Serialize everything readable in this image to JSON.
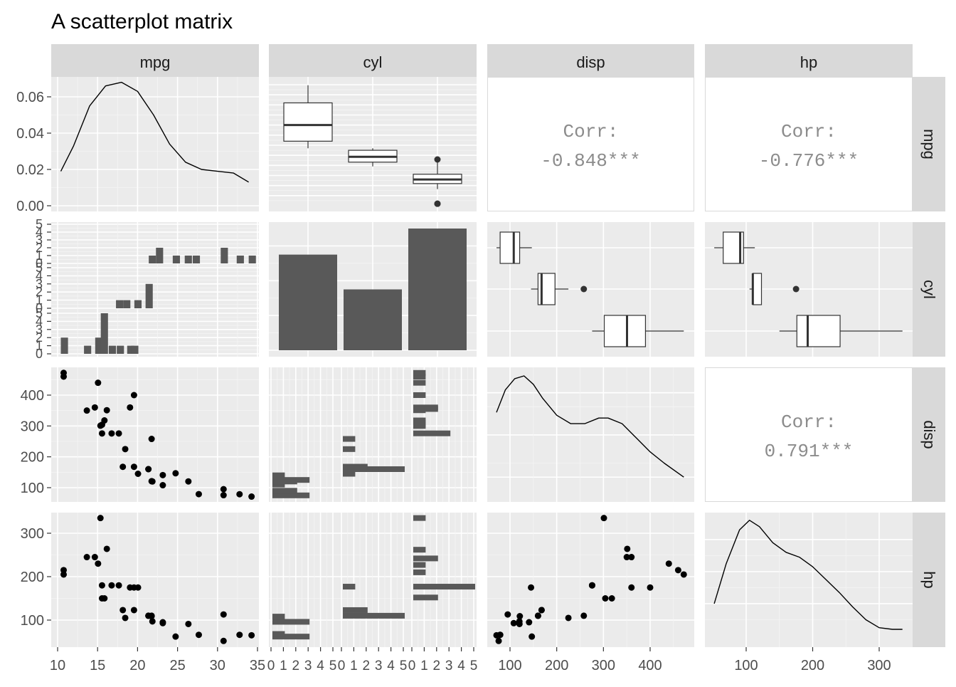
{
  "title": "A scatterplot matrix",
  "variables": [
    "mpg",
    "cyl",
    "disp",
    "hp"
  ],
  "axis_ticks": {
    "mpg_density_y": [
      "0.00",
      "0.02",
      "0.04",
      "0.06"
    ],
    "cyl_row_counts": [
      "0",
      "1",
      "2",
      "3",
      "4",
      "5"
    ],
    "disp_y": [
      "100",
      "200",
      "300",
      "400"
    ],
    "hp_y": [
      "100",
      "200",
      "300"
    ],
    "mpg_x": [
      "10",
      "15",
      "20",
      "25",
      "30",
      "35"
    ],
    "cyl_facet_x": [
      "0",
      "1",
      "2",
      "3",
      "4",
      "5"
    ],
    "disp_x": [
      "100",
      "200",
      "300",
      "400"
    ],
    "hp_x": [
      "100",
      "200",
      "300"
    ]
  },
  "correlations": [
    {
      "pair": [
        "mpg",
        "disp"
      ],
      "label": "Corr:",
      "value": "-0.848***"
    },
    {
      "pair": [
        "mpg",
        "hp"
      ],
      "label": "Corr:",
      "value": "-0.776***"
    },
    {
      "pair": [
        "disp",
        "hp"
      ],
      "label": "Corr:",
      "value": "0.791***"
    }
  ],
  "chart_data": {
    "type": "scatter",
    "subtype": "scatterplot-matrix",
    "title": "A scatterplot matrix",
    "grid": true,
    "cyl_groups": [
      "4",
      "6",
      "8"
    ],
    "cyl_counts": [
      11,
      7,
      14
    ],
    "mpg_density": {
      "x": [
        10.4,
        12,
        14,
        16,
        18,
        20,
        22,
        24,
        26,
        28,
        30,
        32,
        33.9
      ],
      "y": [
        0.019,
        0.033,
        0.055,
        0.066,
        0.068,
        0.063,
        0.05,
        0.034,
        0.024,
        0.02,
        0.019,
        0.018,
        0.013
      ]
    },
    "disp_density": {
      "x": [
        71.1,
        90,
        110,
        130,
        150,
        170,
        200,
        230,
        260,
        290,
        310,
        340,
        370,
        400,
        430,
        472
      ],
      "y": [
        0.0028,
        0.0036,
        0.004,
        0.0041,
        0.0038,
        0.0033,
        0.0027,
        0.0024,
        0.0024,
        0.0026,
        0.0026,
        0.0024,
        0.0019,
        0.0014,
        0.001,
        0.0005
      ]
    },
    "hp_density": {
      "x": [
        52,
        70,
        90,
        105,
        120,
        140,
        160,
        180,
        200,
        220,
        240,
        260,
        280,
        300,
        320,
        335
      ],
      "y": [
        0.002,
        0.0045,
        0.0066,
        0.0072,
        0.0068,
        0.0058,
        0.0052,
        0.0049,
        0.0043,
        0.0035,
        0.0027,
        0.0018,
        0.001,
        0.0005,
        0.0004,
        0.0004
      ]
    },
    "mpg_by_cyl_box": [
      {
        "cyl": "4",
        "min": 21.4,
        "q1": 22.8,
        "median": 26.0,
        "q3": 30.4,
        "max": 33.9,
        "outliers": []
      },
      {
        "cyl": "6",
        "min": 17.8,
        "q1": 18.65,
        "median": 19.7,
        "q3": 21.0,
        "max": 21.4,
        "outliers": []
      },
      {
        "cyl": "8",
        "min": 13.3,
        "q1": 14.4,
        "median": 15.2,
        "q3": 16.25,
        "max": 19.2,
        "outliers": [
          10.4,
          10.4
        ]
      }
    ],
    "disp_by_cyl_box": [
      {
        "cyl": "4",
        "min": 71.1,
        "q1": 78.85,
        "median": 108.0,
        "q3": 120.65,
        "max": 146.7,
        "outliers": []
      },
      {
        "cyl": "6",
        "min": 145.0,
        "q1": 160.0,
        "median": 167.6,
        "q3": 196.3,
        "max": 225.0,
        "outliers": [
          258.0
        ]
      },
      {
        "cyl": "8",
        "min": 275.8,
        "q1": 301.75,
        "median": 350.5,
        "q3": 390.0,
        "max": 472.0,
        "outliers": []
      }
    ],
    "hp_by_cyl_box": [
      {
        "cyl": "4",
        "min": 52,
        "q1": 65.5,
        "median": 91,
        "q3": 96,
        "max": 113,
        "outliers": []
      },
      {
        "cyl": "6",
        "min": 105,
        "q1": 110,
        "median": 110,
        "q3": 123,
        "max": 123,
        "outliers": [
          175
        ]
      },
      {
        "cyl": "8",
        "min": 150,
        "q1": 176.25,
        "median": 192.5,
        "q3": 241.25,
        "max": 335,
        "outliers": []
      }
    ],
    "mpg_by_cyl_hist": {
      "bin_width": 1.0,
      "groups": [
        {
          "cyl": "4",
          "bins": [
            [
              21.4,
              1
            ],
            [
              22.3,
              2
            ],
            [
              24.4,
              1
            ],
            [
              25.9,
              1
            ],
            [
              26.9,
              1
            ],
            [
              30.4,
              2
            ],
            [
              32.4,
              1
            ],
            [
              33.9,
              1
            ]
          ]
        },
        {
          "cyl": "6",
          "bins": [
            [
              17.3,
              1
            ],
            [
              18.2,
              1
            ],
            [
              19.6,
              1
            ],
            [
              21.0,
              3
            ]
          ]
        },
        {
          "cyl": "8",
          "bins": [
            [
              10.4,
              2
            ],
            [
              13.3,
              1
            ],
            [
              14.7,
              2
            ],
            [
              15.4,
              5
            ],
            [
              16.4,
              1
            ],
            [
              17.4,
              1
            ],
            [
              18.7,
              1
            ],
            [
              19.2,
              1
            ]
          ]
        }
      ]
    },
    "disp_by_cyl_hist": {
      "groups": [
        {
          "cyl": "4",
          "bins": [
            [
              75,
              3
            ],
            [
              90,
              2
            ],
            [
              110,
              1
            ],
            [
              120,
              2
            ],
            [
              125,
              3
            ],
            [
              140,
              1
            ]
          ]
        },
        {
          "cyl": "6",
          "bins": [
            [
              145,
              1
            ],
            [
              160,
              5
            ],
            [
              168,
              2
            ],
            [
              225,
              1
            ],
            [
              258,
              1
            ]
          ]
        },
        {
          "cyl": "8",
          "bins": [
            [
              276,
              3
            ],
            [
              300,
              1
            ],
            [
              304,
              1
            ],
            [
              311,
              1
            ],
            [
              318,
              1
            ],
            [
              351,
              1
            ],
            [
              355,
              2
            ],
            [
              360,
              2
            ],
            [
              400,
              1
            ],
            [
              440,
              1
            ],
            [
              460,
              1
            ],
            [
              472,
              1
            ]
          ]
        }
      ]
    },
    "hp_by_cyl_hist": {
      "groups": [
        {
          "cyl": "4",
          "bins": [
            [
              62,
              3
            ],
            [
              68,
              1
            ],
            [
              96,
              3
            ],
            [
              108,
              1
            ]
          ]
        },
        {
          "cyl": "6",
          "bins": [
            [
              110,
              5
            ],
            [
              123,
              2
            ],
            [
              177,
              1
            ]
          ]
        },
        {
          "cyl": "8",
          "bins": [
            [
              152,
              2
            ],
            [
              177,
              5
            ],
            [
              210,
              1
            ],
            [
              227,
              1
            ],
            [
              242,
              2
            ],
            [
              262,
              1
            ],
            [
              335,
              1
            ]
          ]
        }
      ]
    },
    "points": {
      "mpg": [
        21.0,
        21.0,
        22.8,
        21.4,
        18.7,
        18.1,
        14.3,
        24.4,
        22.8,
        19.2,
        17.8,
        16.4,
        17.3,
        15.2,
        10.4,
        10.4,
        14.7,
        32.4,
        30.4,
        33.9,
        21.5,
        15.5,
        15.2,
        13.3,
        19.2,
        27.3,
        26.0,
        30.4,
        15.8,
        19.7,
        15.0,
        21.4
      ],
      "disp": [
        160,
        160,
        108,
        258,
        360,
        225,
        360,
        146.7,
        140.8,
        167.6,
        167.6,
        275.8,
        275.8,
        275.8,
        472,
        460,
        440,
        78.7,
        75.7,
        71.1,
        120.1,
        318,
        304,
        350,
        400,
        79,
        120.3,
        95.1,
        351,
        145,
        301,
        121
      ],
      "hp": [
        110,
        110,
        93,
        110,
        175,
        105,
        245,
        62,
        95,
        123,
        123,
        180,
        180,
        180,
        205,
        215,
        230,
        66,
        52,
        65,
        97,
        150,
        150,
        245,
        175,
        66,
        91,
        113,
        264,
        175,
        335,
        109
      ]
    },
    "xlim": {
      "mpg": [
        10,
        35
      ],
      "disp": [
        71.1,
        472
      ],
      "hp": [
        52,
        335
      ]
    },
    "ylim": {
      "mpg_density": [
        0,
        0.07
      ],
      "disp": [
        71.1,
        472
      ],
      "hp": [
        52,
        335
      ],
      "count": [
        0,
        5
      ]
    }
  }
}
